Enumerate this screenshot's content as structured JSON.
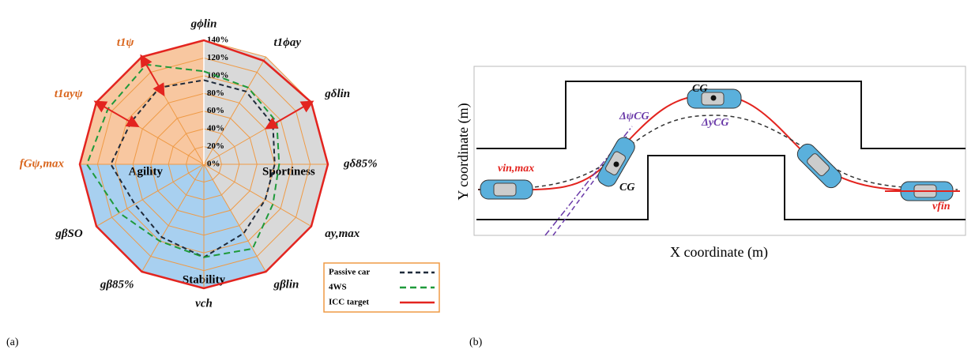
{
  "chart_data": {
    "type": "radar",
    "categories": [
      "gϕlin",
      "t1ϕay",
      "gδlin",
      "gδ85%",
      "ay,max",
      "gβlin",
      "vch",
      "gβ85%",
      "gβSO",
      "fGψ,max",
      "t1ayψ",
      "t1ψ"
    ],
    "category_colors": [
      "#111111",
      "#111111",
      "#111111",
      "#111111",
      "#111111",
      "#111111",
      "#111111",
      "#111111",
      "#111111",
      "#d9651c",
      "#d9651c",
      "#d9651c"
    ],
    "ylim": [
      0,
      140
    ],
    "yticks": [
      {
        "value": 0,
        "label": "0%"
      },
      {
        "value": 20,
        "label": "20%"
      },
      {
        "value": 40,
        "label": "40%"
      },
      {
        "value": 60,
        "label": "60%"
      },
      {
        "value": 80,
        "label": "80%"
      },
      {
        "value": 100,
        "label": "100%"
      },
      {
        "value": 120,
        "label": "120%"
      },
      {
        "value": 140,
        "label": "140%"
      }
    ],
    "grid_color": "#ef9a45",
    "series": [
      {
        "name": "Passive car",
        "color": "#1f2a3a",
        "dash": "6,4",
        "values": [
          95,
          95,
          90,
          80,
          80,
          90,
          105,
          95,
          90,
          105,
          95,
          100
        ]
      },
      {
        "name": "4WS",
        "color": "#1f9a3a",
        "dash": "8,5",
        "values": [
          105,
          100,
          95,
          85,
          90,
          110,
          105,
          100,
          110,
          132,
          125,
          130
        ]
      },
      {
        "name": "ICC target",
        "color": "#e3241f",
        "dash": "none",
        "values": [
          140,
          135,
          140,
          140,
          140,
          140,
          140,
          140,
          140,
          140,
          140,
          140
        ]
      }
    ],
    "regions": [
      {
        "label": "Agility",
        "color": "#f8c7a0"
      },
      {
        "label": "Sportiness",
        "color": "#d9d9d9"
      },
      {
        "label": "Stability",
        "color": "#a8d0f0"
      }
    ],
    "legend": "lower right",
    "panel_label": "(a)"
  },
  "diagram": {
    "panel_label": "(b)",
    "x_label": "X coordinate (m)",
    "y_label": "Y coordinate (m)",
    "v_in": "vin,max",
    "cg_left": "CG",
    "delta_psi": "ΔψCG",
    "cg_top": "CG",
    "delta_y": "ΔyCG",
    "v_fin": "vfin"
  }
}
